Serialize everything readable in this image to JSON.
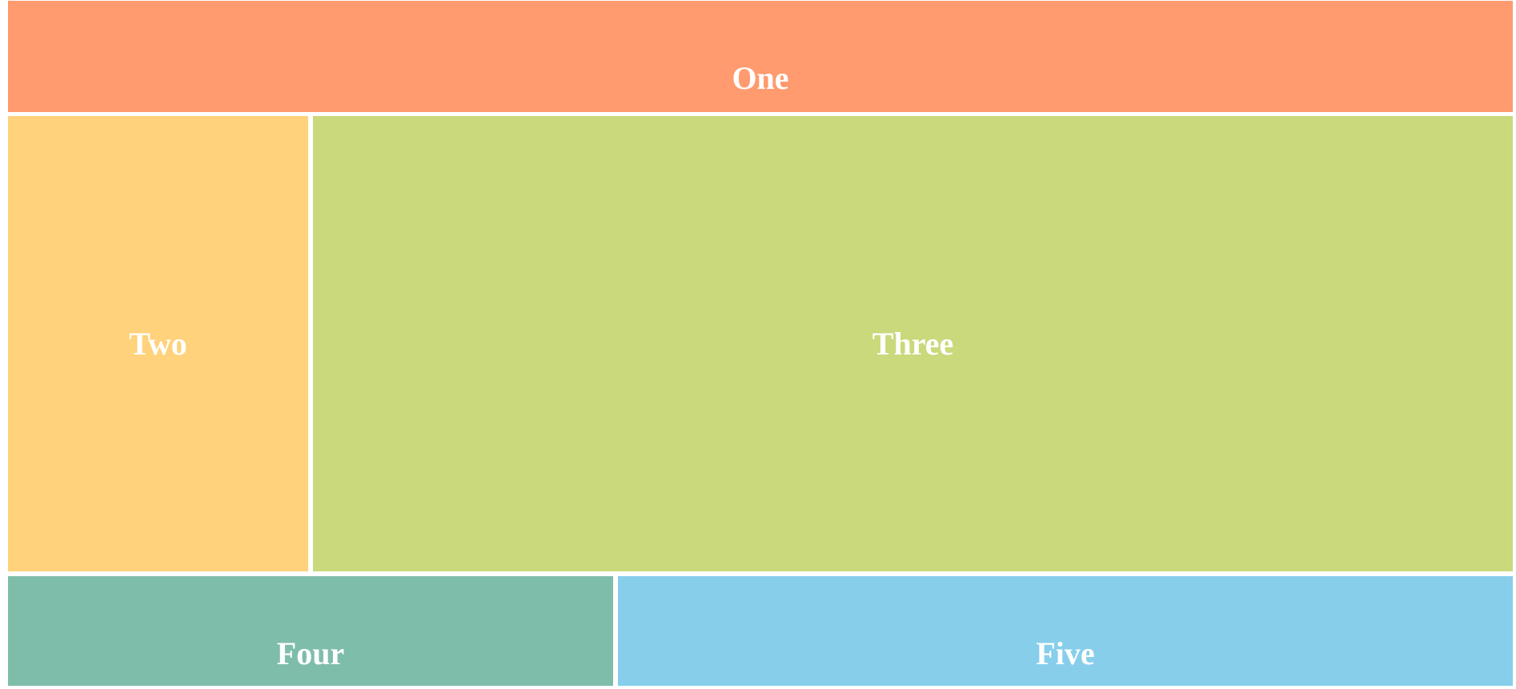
{
  "panels": {
    "one": {
      "label": "One",
      "color": "#FF9B6E"
    },
    "two": {
      "label": "Two",
      "color": "#FFD27B"
    },
    "three": {
      "label": "Three",
      "color": "#C9D97B"
    },
    "four": {
      "label": "Four",
      "color": "#7FBDAB"
    },
    "five": {
      "label": "Five",
      "color": "#87CEEB"
    }
  },
  "colors": {
    "text": "#FFFFFF",
    "background": "#FFFFFF"
  }
}
